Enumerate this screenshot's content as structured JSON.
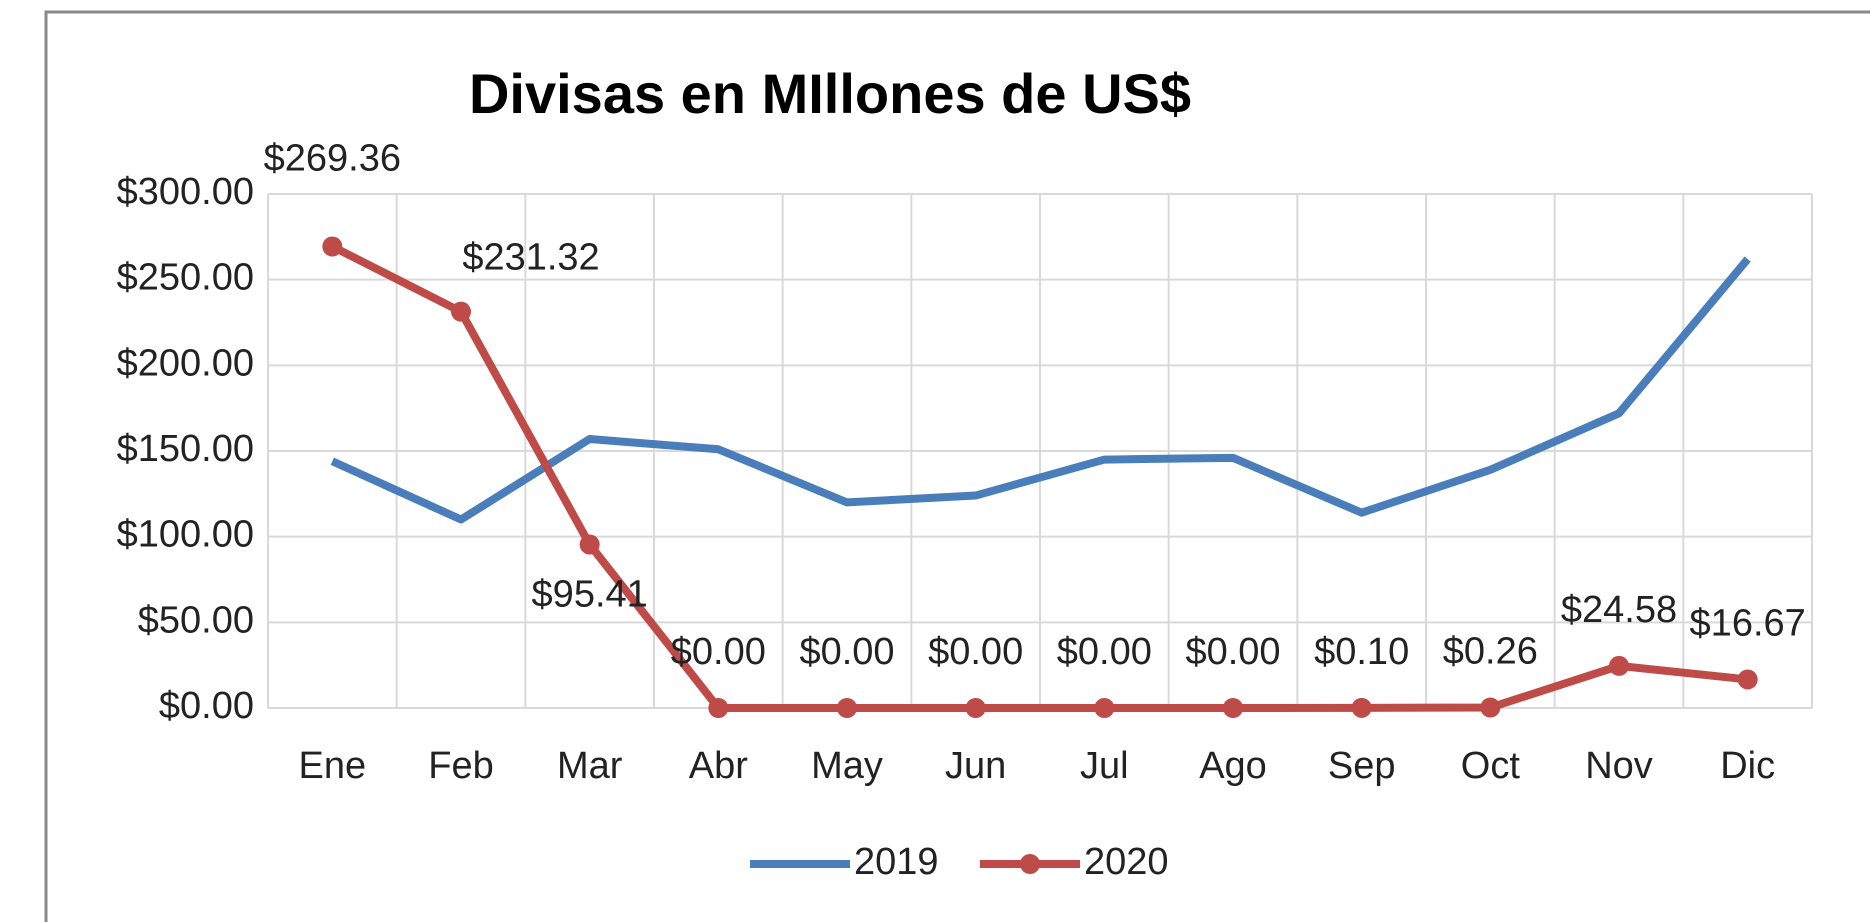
{
  "chart_data": {
    "type": "line",
    "title": "Divisas en MIllones de US$",
    "categories": [
      "Ene",
      "Feb",
      "Mar",
      "Abr",
      "May",
      "Jun",
      "Jul",
      "Ago",
      "Sep",
      "Oct",
      "Nov",
      "Dic"
    ],
    "series": [
      {
        "name": "2019",
        "color": "#4a7ebb",
        "values": [
          144,
          110,
          157,
          151,
          120,
          124,
          145,
          146,
          114,
          139,
          172,
          262
        ]
      },
      {
        "name": "2020",
        "color": "#be4b48",
        "values": [
          269.36,
          231.32,
          95.41,
          0,
          0,
          0,
          0,
          0,
          0.1,
          0.26,
          24.58,
          16.67
        ],
        "value_labels": [
          "$269.36",
          "$231.32",
          "$95.41",
          "$0.00",
          "$0.00",
          "$0.00",
          "$0.00",
          "$0.00",
          "$0.10",
          "$0.26",
          "$24.58",
          "$16.67"
        ],
        "markers": true
      }
    ],
    "ylim": [
      0,
      300
    ],
    "yticks": [
      {
        "value": 0,
        "label": "$0.00"
      },
      {
        "value": 50,
        "label": "$50.00"
      },
      {
        "value": 100,
        "label": "$100.00"
      },
      {
        "value": 150,
        "label": "$150.00"
      },
      {
        "value": 200,
        "label": "$200.00"
      },
      {
        "value": 250,
        "label": "$250.00"
      },
      {
        "value": 300,
        "label": "$300.00"
      }
    ],
    "grid": true,
    "legend": "bottom"
  }
}
